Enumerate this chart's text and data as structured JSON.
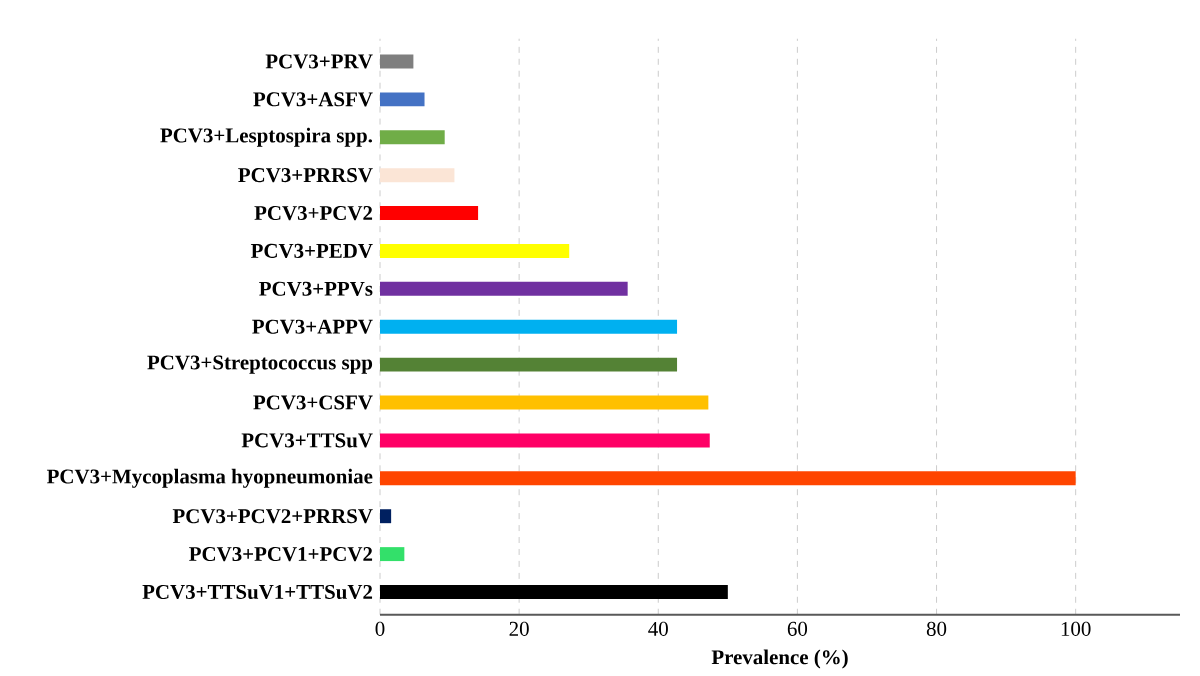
{
  "chart_data": {
    "type": "bar",
    "orientation": "horizontal",
    "xlabel": "Prevalence (%)",
    "categories": [
      "PCV3+PRV",
      "PCV3+ASFV",
      "PCV3+Lesptospira spp.",
      "PCV3+PRRSV",
      "PCV3+PCV2",
      "PCV3+PEDV",
      "PCV3+PPVs",
      "PCV3+APPV",
      "PCV3+Streptococcus spp",
      "PCV3+CSFV",
      "PCV3+TTSuV",
      "PCV3+Mycoplasma hyopneumoniae",
      "PCV3+PCV2+PRRSV",
      "PCV3+PCV1+PCV2",
      "PCV3+TTSuV1+TTSuV2"
    ],
    "values": [
      4.8,
      6.4,
      9.3,
      10.7,
      14.1,
      27.2,
      35.6,
      42.7,
      42.7,
      47.2,
      47.4,
      100,
      1.6,
      3.5,
      50
    ],
    "colors": [
      "#7f7f7f",
      "#4472c4",
      "#70ad47",
      "#fbe5d6",
      "#ff0000",
      "#ffff00",
      "#7030a0",
      "#00b0f0",
      "#548235",
      "#ffc000",
      "#ff0066",
      "#ff4500",
      "#002060",
      "#33e06a",
      "#000000"
    ],
    "xlim": [
      0,
      115
    ],
    "xticks": [
      0,
      20,
      40,
      60,
      80,
      100
    ],
    "grid": "x"
  }
}
